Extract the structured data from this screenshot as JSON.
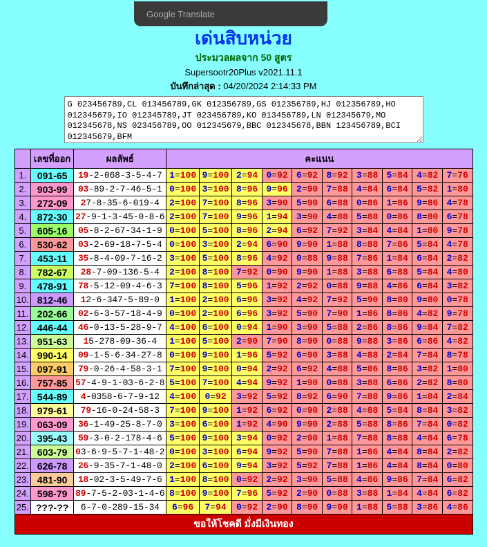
{
  "translate_label": "Google Translate",
  "header": {
    "title": "เด่นสิบหน่วย",
    "subtitle_prefix": "ประมวลผลจาก ",
    "subtitle_count": "50",
    "subtitle_suffix": " สูตร",
    "version": "Supersootr20Plus v2021.11.1",
    "saved_label": "บันทึกล่าสุด :",
    "saved_time": " 04/20/2024 2:14:33 PM"
  },
  "logtext": "G 023456789,CL 013456789,GK 012356789,GS 012356789,HJ 012356789,HO 012345679,IO 012345789,JT 023456789,KO 013456789,LN 012345679,MO 012345678,NS 023456789,OO 012345679,BBC 012345678,BBN 123456789,BCI 012345679,BFM",
  "th": {
    "num": "เลขที่ออก",
    "res": "ผลลัพธ์",
    "score": "คะแนน"
  },
  "footer": "ขอให้โชคดี มั่งมีเงินทอง",
  "colors": {
    "draw_colors": [
      "#66ffff",
      "#ff99cc",
      "#ff99cc",
      "#66ffff",
      "#99ff66",
      "#ff9999",
      "#66ffff",
      "#ccff66",
      "#66ffff",
      "#cc99ff",
      "#99ff99",
      "#66ffff",
      "#ccff99",
      "#ffff66",
      "#ffcc66",
      "#ff9999",
      "#66ffff",
      "#ffff99",
      "#ff99cc",
      "#99ffff",
      "#ccff99",
      "#cc99ff",
      "#ffcc99",
      "#ff99cc",
      "#ffffff"
    ],
    "score_hi": "#ffff66",
    "score_lo": "#ff9999"
  },
  "rows": [
    {
      "n": "1",
      "num": "091-65",
      "lead": "19",
      "rest": "-2-068-3-5-4-7",
      "scores": [
        [
          "1",
          "100"
        ],
        [
          "9",
          "100"
        ],
        [
          "2",
          "94"
        ],
        [
          "0",
          "92"
        ],
        [
          "6",
          "92"
        ],
        [
          "8",
          "92"
        ],
        [
          "3",
          "88"
        ],
        [
          "5",
          "84"
        ],
        [
          "4",
          "82"
        ],
        [
          "7",
          "76"
        ]
      ]
    },
    {
      "n": "2",
      "num": "903-99",
      "lead": "03",
      "rest": "-89-2-7-46-5-1",
      "scores": [
        [
          "0",
          "100"
        ],
        [
          "3",
          "100"
        ],
        [
          "8",
          "96"
        ],
        [
          "9",
          "96"
        ],
        [
          "2",
          "90"
        ],
        [
          "7",
          "88"
        ],
        [
          "4",
          "84"
        ],
        [
          "6",
          "84"
        ],
        [
          "5",
          "82"
        ],
        [
          "1",
          "80"
        ]
      ]
    },
    {
      "n": "3",
      "num": "272-09",
      "lead": "2",
      "rest": "7-8-35-6-019-4",
      "scores": [
        [
          "2",
          "100"
        ],
        [
          "7",
          "100"
        ],
        [
          "8",
          "96"
        ],
        [
          "3",
          "90"
        ],
        [
          "5",
          "90"
        ],
        [
          "6",
          "88"
        ],
        [
          "0",
          "86"
        ],
        [
          "1",
          "86"
        ],
        [
          "9",
          "86"
        ],
        [
          "4",
          "78"
        ]
      ]
    },
    {
      "n": "4",
      "num": "872-30",
      "lead": "27",
      "rest": "-9-1-3-45-0-8-6",
      "scores": [
        [
          "2",
          "100"
        ],
        [
          "7",
          "100"
        ],
        [
          "9",
          "96"
        ],
        [
          "1",
          "94"
        ],
        [
          "3",
          "90"
        ],
        [
          "4",
          "88"
        ],
        [
          "5",
          "88"
        ],
        [
          "0",
          "86"
        ],
        [
          "8",
          "80"
        ],
        [
          "6",
          "78"
        ]
      ]
    },
    {
      "n": "5",
      "num": "605-16",
      "lead": "05",
      "rest": "-8-2-67-34-1-9",
      "scores": [
        [
          "0",
          "100"
        ],
        [
          "5",
          "100"
        ],
        [
          "8",
          "96"
        ],
        [
          "2",
          "94"
        ],
        [
          "6",
          "92"
        ],
        [
          "7",
          "92"
        ],
        [
          "3",
          "84"
        ],
        [
          "4",
          "84"
        ],
        [
          "1",
          "80"
        ],
        [
          "9",
          "78"
        ]
      ]
    },
    {
      "n": "6",
      "num": "530-62",
      "lead": "03",
      "rest": "-2-69-18-7-5-4",
      "scores": [
        [
          "0",
          "100"
        ],
        [
          "3",
          "100"
        ],
        [
          "2",
          "94"
        ],
        [
          "6",
          "90"
        ],
        [
          "9",
          "90"
        ],
        [
          "1",
          "88"
        ],
        [
          "8",
          "88"
        ],
        [
          "7",
          "86"
        ],
        [
          "5",
          "84"
        ],
        [
          "4",
          "78"
        ]
      ]
    },
    {
      "n": "7",
      "num": "453-11",
      "lead": "35",
      "rest": "-8-4-09-7-16-2",
      "scores": [
        [
          "3",
          "100"
        ],
        [
          "5",
          "100"
        ],
        [
          "8",
          "96"
        ],
        [
          "4",
          "92"
        ],
        [
          "0",
          "88"
        ],
        [
          "9",
          "88"
        ],
        [
          "7",
          "86"
        ],
        [
          "1",
          "84"
        ],
        [
          "6",
          "84"
        ],
        [
          "2",
          "82"
        ]
      ]
    },
    {
      "n": "8",
      "num": "782-67",
      "lead": "28",
      "rest": "-7-09-136-5-4",
      "scores": [
        [
          "2",
          "100"
        ],
        [
          "8",
          "100"
        ],
        [
          "7",
          "92"
        ],
        [
          "0",
          "90"
        ],
        [
          "9",
          "90"
        ],
        [
          "1",
          "88"
        ],
        [
          "3",
          "88"
        ],
        [
          "6",
          "88"
        ],
        [
          "5",
          "84"
        ],
        [
          "4",
          "80"
        ]
      ]
    },
    {
      "n": "9",
      "num": "478-91",
      "lead": "78",
      "rest": "-5-12-09-4-6-3",
      "scores": [
        [
          "7",
          "100"
        ],
        [
          "8",
          "100"
        ],
        [
          "5",
          "96"
        ],
        [
          "1",
          "92"
        ],
        [
          "2",
          "92"
        ],
        [
          "0",
          "88"
        ],
        [
          "9",
          "88"
        ],
        [
          "4",
          "86"
        ],
        [
          "6",
          "84"
        ],
        [
          "3",
          "82"
        ]
      ]
    },
    {
      "n": "10",
      "num": "812-46",
      "lead": "1",
      "rest": "2-6-347-5-89-0",
      "scores": [
        [
          "1",
          "100"
        ],
        [
          "2",
          "100"
        ],
        [
          "6",
          "96"
        ],
        [
          "3",
          "92"
        ],
        [
          "4",
          "92"
        ],
        [
          "7",
          "92"
        ],
        [
          "5",
          "90"
        ],
        [
          "8",
          "80"
        ],
        [
          "9",
          "80"
        ],
        [
          "0",
          "78"
        ]
      ]
    },
    {
      "n": "11",
      "num": "202-66",
      "lead": "02",
      "rest": "-6-3-57-18-4-9",
      "scores": [
        [
          "0",
          "100"
        ],
        [
          "2",
          "100"
        ],
        [
          "6",
          "96"
        ],
        [
          "3",
          "92"
        ],
        [
          "5",
          "90"
        ],
        [
          "7",
          "90"
        ],
        [
          "1",
          "86"
        ],
        [
          "8",
          "86"
        ],
        [
          "4",
          "82"
        ],
        [
          "9",
          "78"
        ]
      ]
    },
    {
      "n": "12",
      "num": "446-44",
      "lead": "46",
      "rest": "-0-13-5-28-9-7",
      "scores": [
        [
          "4",
          "100"
        ],
        [
          "6",
          "100"
        ],
        [
          "0",
          "94"
        ],
        [
          "1",
          "90"
        ],
        [
          "3",
          "90"
        ],
        [
          "5",
          "88"
        ],
        [
          "2",
          "86"
        ],
        [
          "8",
          "86"
        ],
        [
          "9",
          "84"
        ],
        [
          "7",
          "82"
        ]
      ]
    },
    {
      "n": "13",
      "num": "951-63",
      "lead": "1",
      "rest": "5-278-09-36-4",
      "scores": [
        [
          "1",
          "100"
        ],
        [
          "5",
          "100"
        ],
        [
          "2",
          "90"
        ],
        [
          "7",
          "90"
        ],
        [
          "8",
          "90"
        ],
        [
          "0",
          "88"
        ],
        [
          "9",
          "88"
        ],
        [
          "3",
          "86"
        ],
        [
          "6",
          "86"
        ],
        [
          "4",
          "82"
        ]
      ]
    },
    {
      "n": "14",
      "num": "990-14",
      "lead": "09",
      "rest": "-1-5-6-34-27-8",
      "scores": [
        [
          "0",
          "100"
        ],
        [
          "9",
          "100"
        ],
        [
          "1",
          "96"
        ],
        [
          "5",
          "92"
        ],
        [
          "6",
          "90"
        ],
        [
          "3",
          "88"
        ],
        [
          "4",
          "88"
        ],
        [
          "2",
          "84"
        ],
        [
          "7",
          "84"
        ],
        [
          "8",
          "78"
        ]
      ]
    },
    {
      "n": "15",
      "num": "097-91",
      "lead": "79",
      "rest": "-0-26-4-58-3-1",
      "scores": [
        [
          "7",
          "100"
        ],
        [
          "9",
          "100"
        ],
        [
          "0",
          "94"
        ],
        [
          "2",
          "92"
        ],
        [
          "6",
          "92"
        ],
        [
          "4",
          "88"
        ],
        [
          "5",
          "86"
        ],
        [
          "8",
          "86"
        ],
        [
          "3",
          "82"
        ],
        [
          "1",
          "80"
        ]
      ]
    },
    {
      "n": "16",
      "num": "757-85",
      "lead": "57",
      "rest": "-4-9-1-03-6-2-8",
      "scores": [
        [
          "5",
          "100"
        ],
        [
          "7",
          "100"
        ],
        [
          "4",
          "94"
        ],
        [
          "9",
          "92"
        ],
        [
          "1",
          "90"
        ],
        [
          "0",
          "88"
        ],
        [
          "3",
          "88"
        ],
        [
          "6",
          "86"
        ],
        [
          "2",
          "82"
        ],
        [
          "8",
          "80"
        ]
      ]
    },
    {
      "n": "17",
      "num": "544-89",
      "lead": "4",
      "rest": "-0358-6-7-9-12",
      "scores": [
        [
          "4",
          "100"
        ],
        [
          "0",
          "92"
        ],
        [
          "3",
          "92"
        ],
        [
          "5",
          "92"
        ],
        [
          "8",
          "92"
        ],
        [
          "6",
          "90"
        ],
        [
          "7",
          "88"
        ],
        [
          "9",
          "86"
        ],
        [
          "1",
          "84"
        ],
        [
          "2",
          "84"
        ]
      ]
    },
    {
      "n": "18",
      "num": "979-61",
      "lead": "79",
      "rest": "-16-0-24-58-3",
      "scores": [
        [
          "7",
          "100"
        ],
        [
          "9",
          "100"
        ],
        [
          "1",
          "92"
        ],
        [
          "6",
          "92"
        ],
        [
          "0",
          "90"
        ],
        [
          "2",
          "88"
        ],
        [
          "4",
          "88"
        ],
        [
          "5",
          "84"
        ],
        [
          "8",
          "84"
        ],
        [
          "3",
          "82"
        ]
      ]
    },
    {
      "n": "19",
      "num": "063-09",
      "lead": "36",
      "rest": "-1-49-25-8-7-0",
      "scores": [
        [
          "3",
          "100"
        ],
        [
          "6",
          "100"
        ],
        [
          "1",
          "92"
        ],
        [
          "4",
          "90"
        ],
        [
          "9",
          "90"
        ],
        [
          "2",
          "88"
        ],
        [
          "5",
          "88"
        ],
        [
          "8",
          "86"
        ],
        [
          "7",
          "84"
        ],
        [
          "0",
          "82"
        ]
      ]
    },
    {
      "n": "20",
      "num": "395-43",
      "lead": "59",
      "rest": "-3-0-2-178-4-6",
      "scores": [
        [
          "5",
          "100"
        ],
        [
          "9",
          "100"
        ],
        [
          "3",
          "94"
        ],
        [
          "0",
          "92"
        ],
        [
          "2",
          "90"
        ],
        [
          "1",
          "88"
        ],
        [
          "7",
          "88"
        ],
        [
          "8",
          "88"
        ],
        [
          "4",
          "84"
        ],
        [
          "6",
          "78"
        ]
      ]
    },
    {
      "n": "21",
      "num": "603-79",
      "lead": "0",
      "rest": "3-6-9-5-7-1-48-2",
      "scores": [
        [
          "0",
          "100"
        ],
        [
          "3",
          "100"
        ],
        [
          "6",
          "94"
        ],
        [
          "9",
          "92"
        ],
        [
          "5",
          "90"
        ],
        [
          "7",
          "88"
        ],
        [
          "1",
          "86"
        ],
        [
          "4",
          "84"
        ],
        [
          "8",
          "84"
        ],
        [
          "2",
          "82"
        ]
      ]
    },
    {
      "n": "22",
      "num": "626-78",
      "lead": "26",
      "rest": "-9-35-7-1-48-0",
      "scores": [
        [
          "2",
          "100"
        ],
        [
          "6",
          "100"
        ],
        [
          "9",
          "94"
        ],
        [
          "3",
          "92"
        ],
        [
          "5",
          "92"
        ],
        [
          "7",
          "88"
        ],
        [
          "1",
          "86"
        ],
        [
          "4",
          "84"
        ],
        [
          "8",
          "84"
        ],
        [
          "0",
          "80"
        ]
      ]
    },
    {
      "n": "23",
      "num": "481-90",
      "lead": "18",
      "rest": "-02-3-5-49-7-6",
      "scores": [
        [
          "1",
          "100"
        ],
        [
          "8",
          "100"
        ],
        [
          "0",
          "92"
        ],
        [
          "2",
          "92"
        ],
        [
          "3",
          "90"
        ],
        [
          "5",
          "88"
        ],
        [
          "4",
          "86"
        ],
        [
          "9",
          "86"
        ],
        [
          "7",
          "84"
        ],
        [
          "6",
          "82"
        ]
      ]
    },
    {
      "n": "24",
      "num": "598-79",
      "lead": "89",
      "rest": "-7-5-2-03-1-4-6",
      "scores": [
        [
          "8",
          "100"
        ],
        [
          "9",
          "100"
        ],
        [
          "7",
          "96"
        ],
        [
          "5",
          "92"
        ],
        [
          "2",
          "90"
        ],
        [
          "0",
          "88"
        ],
        [
          "3",
          "88"
        ],
        [
          "1",
          "84"
        ],
        [
          "4",
          "84"
        ],
        [
          "6",
          "82"
        ]
      ]
    },
    {
      "n": "25",
      "num": "???-??",
      "lead": "",
      "rest": "6-7-0-289-15-34",
      "scores": [
        [
          "6",
          "96"
        ],
        [
          "7",
          "94"
        ],
        [
          "0",
          "92"
        ],
        [
          "2",
          "90"
        ],
        [
          "8",
          "90"
        ],
        [
          "9",
          "90"
        ],
        [
          "1",
          "88"
        ],
        [
          "5",
          "88"
        ],
        [
          "3",
          "86"
        ],
        [
          "4",
          "86"
        ]
      ]
    }
  ]
}
